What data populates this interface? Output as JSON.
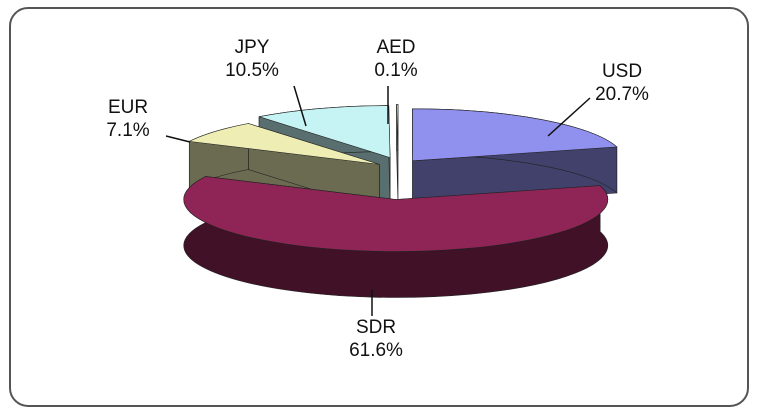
{
  "chart_data": {
    "type": "pie",
    "categories": [
      "USD",
      "SDR",
      "EUR",
      "JPY",
      "AED"
    ],
    "values": [
      20.7,
      61.6,
      7.1,
      10.5,
      0.1
    ],
    "value_labels": [
      "20.7%",
      "61.6%",
      "7.1%",
      "10.5%",
      "0.1%"
    ],
    "colors": [
      "#9090ee",
      "#8e2556",
      "#eeeeb4",
      "#c6f4f4",
      "#ffffff"
    ]
  }
}
